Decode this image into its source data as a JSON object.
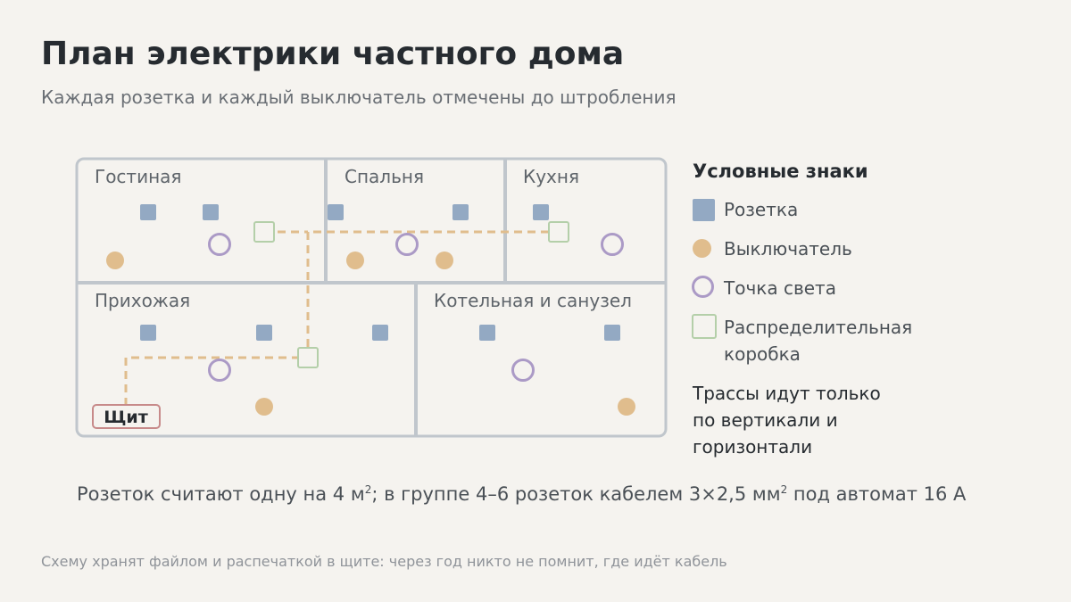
{
  "header": {
    "title": "План электрики частного дома",
    "subtitle": "Каждая розетка и каждый выключатель отмечены до штробления"
  },
  "plan": {
    "rooms": [
      {
        "id": "living",
        "label": "Гостиная"
      },
      {
        "id": "bedroom",
        "label": "Спальня"
      },
      {
        "id": "kitchen",
        "label": "Кухня"
      },
      {
        "id": "hallway",
        "label": "Прихожая"
      },
      {
        "id": "boiler",
        "label": "Котельная и санузел"
      }
    ],
    "panel_label": "Щит",
    "colors": {
      "wall": "#c0c6cc",
      "socket": "#93a9c3",
      "switch": "#e0bd8d",
      "light": "#ab9ac6",
      "junction_box": "#b4cfa9",
      "cable": "#e0bd8d",
      "panel_border": "#c78a8a"
    }
  },
  "legend": {
    "title": "Условные знаки",
    "items": [
      {
        "kind": "socket",
        "label": "Розетка"
      },
      {
        "kind": "switch",
        "label": "Выключатель"
      },
      {
        "kind": "light",
        "label": "Точка света"
      },
      {
        "kind": "box",
        "label": "Распределительная коробка"
      }
    ],
    "note": "Трассы идут только по вертикали и горизонтали"
  },
  "footnote": {
    "part1": "Розеток считают одну на 4 м",
    "sup1": "2",
    "part2": "; в группе 4–6 розеток кабелем 3×2,5 мм",
    "sup2": "2",
    "part3": " под автомат 16 А"
  },
  "bottom_note": "Схему хранят файлом и распечаткой в щите: через год никто не помнит, где идёт кабель"
}
